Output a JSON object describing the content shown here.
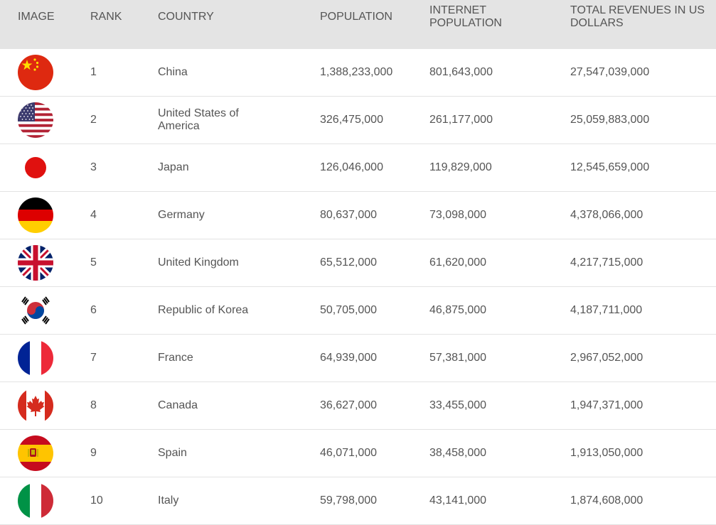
{
  "headers": {
    "image": "IMAGE",
    "rank": "RANK",
    "country": "COUNTRY",
    "population": "POPULATION",
    "internet_population": "INTERNET POPULATION",
    "revenues": "TOTAL REVENUES IN US DOLLARS"
  },
  "rows": [
    {
      "rank": "1",
      "country": "China",
      "population": "1,388,233,000",
      "internet_population": "801,643,000",
      "revenues": "27,547,039,000",
      "flag_icon": "china-flag-icon"
    },
    {
      "rank": "2",
      "country": "United States of America",
      "population": "326,475,000",
      "internet_population": "261,177,000",
      "revenues": "25,059,883,000",
      "flag_icon": "usa-flag-icon"
    },
    {
      "rank": "3",
      "country": "Japan",
      "population": "126,046,000",
      "internet_population": "119,829,000",
      "revenues": "12,545,659,000",
      "flag_icon": "japan-flag-icon"
    },
    {
      "rank": "4",
      "country": "Germany",
      "population": "80,637,000",
      "internet_population": "73,098,000",
      "revenues": "4,378,066,000",
      "flag_icon": "germany-flag-icon"
    },
    {
      "rank": "5",
      "country": "United Kingdom",
      "population": "65,512,000",
      "internet_population": "61,620,000",
      "revenues": "4,217,715,000",
      "flag_icon": "uk-flag-icon"
    },
    {
      "rank": "6",
      "country": "Republic of Korea",
      "population": "50,705,000",
      "internet_population": "46,875,000",
      "revenues": "4,187,711,000",
      "flag_icon": "korea-flag-icon"
    },
    {
      "rank": "7",
      "country": "France",
      "population": "64,939,000",
      "internet_population": "57,381,000",
      "revenues": "2,967,052,000",
      "flag_icon": "france-flag-icon"
    },
    {
      "rank": "8",
      "country": "Canada",
      "population": "36,627,000",
      "internet_population": "33,455,000",
      "revenues": "1,947,371,000",
      "flag_icon": "canada-flag-icon"
    },
    {
      "rank": "9",
      "country": "Spain",
      "population": "46,071,000",
      "internet_population": "38,458,000",
      "revenues": "1,913,050,000",
      "flag_icon": "spain-flag-icon"
    },
    {
      "rank": "10",
      "country": "Italy",
      "population": "59,798,000",
      "internet_population": "43,141,000",
      "revenues": "1,874,608,000",
      "flag_icon": "italy-flag-icon"
    }
  ],
  "colors": {
    "header_bg": "#e4e4e4",
    "text": "#555555",
    "row_divider": "#e3e3e3"
  }
}
